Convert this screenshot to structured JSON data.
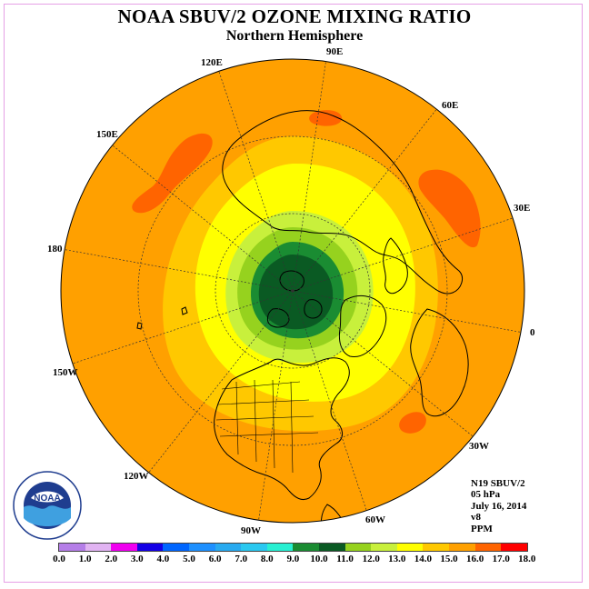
{
  "header": {
    "title": "NOAA SBUV/2 OZONE MIXING RATIO",
    "subtitle": "Northern Hemisphere"
  },
  "longitude_labels": [
    "90E",
    "60E",
    "30E",
    "0",
    "30W",
    "60W",
    "90W",
    "120W",
    "150W",
    "180",
    "150E",
    "120E"
  ],
  "info": {
    "satellite": "N19 SBUV/2",
    "level": "05 hPa",
    "date": "July 16, 2014",
    "version": "v8",
    "units": "PPM"
  },
  "colorbar": {
    "ticks": [
      "0.0",
      "1.0",
      "2.0",
      "3.0",
      "4.0",
      "5.0",
      "6.0",
      "7.0",
      "8.0",
      "9.0",
      "10.0",
      "11.0",
      "12.0",
      "13.0",
      "14.0",
      "15.0",
      "16.0",
      "17.0",
      "18.0"
    ],
    "colors": [
      "#b57ee8",
      "#e1b3f2",
      "#f000f0",
      "#1400e6",
      "#0066ff",
      "#1e90ff",
      "#28aaf0",
      "#2ac8f0",
      "#28f0d2",
      "#1a8c32",
      "#0a5a23",
      "#96d21e",
      "#c8f03c",
      "#ffff00",
      "#ffc800",
      "#ffa000",
      "#ff6400",
      "#ff0000",
      "#8b5a3c"
    ]
  },
  "colors": {
    "ocean_fill": "#ffa000",
    "border": "#e6a0e6"
  },
  "logo": {
    "text": "NOAA",
    "ring_text": "NATIONAL OCEANIC AND ATMOSPHERIC ADMINISTRATION · U.S. DEPARTMENT OF COMMERCE"
  }
}
